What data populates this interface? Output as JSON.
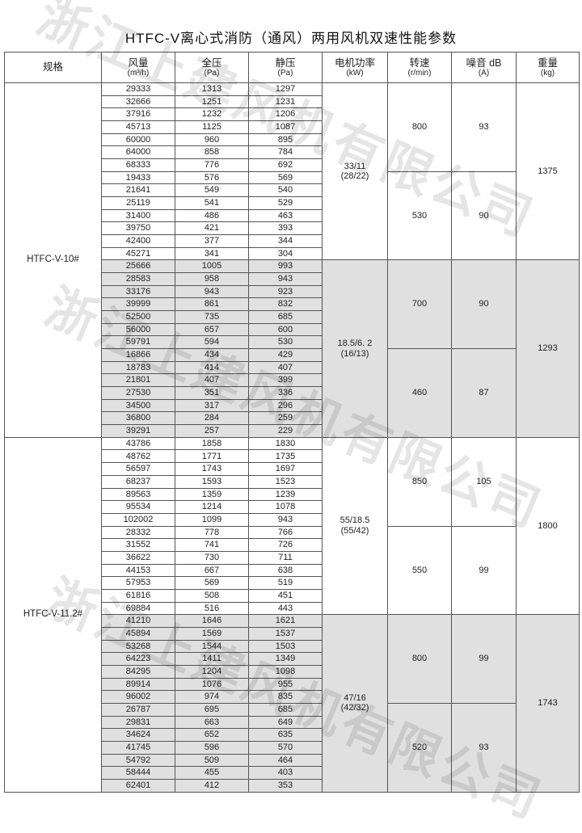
{
  "title": "HTFC-V离心式消防（通风）两用风机双速性能参数",
  "watermark": "浙江上建风机有限公司",
  "colors": {
    "shade": "#e0e0e0",
    "border": "#555555"
  },
  "headers": [
    {
      "label": "规格",
      "unit": ""
    },
    {
      "label": "风量",
      "unit": "(m³/h)"
    },
    {
      "label": "全压",
      "unit": "(Pa)"
    },
    {
      "label": "静压",
      "unit": "(Pa)"
    },
    {
      "label": "电机功率",
      "unit": "(kW)"
    },
    {
      "label": "转速",
      "unit": "(r/min)"
    },
    {
      "label": "噪音 dB",
      "unit": "(A)"
    },
    {
      "label": "重量",
      "unit": "(kg)"
    }
  ],
  "models": [
    {
      "label": "HTFC-V-10#",
      "groups": [
        {
          "motor": "33/11",
          "motor_sub": "(28/22)",
          "weight": "1375",
          "speeds": [
            {
              "rpm": "800",
              "noise": "93",
              "rows": [
                [
                  "29333",
                  "1313",
                  "1297"
                ],
                [
                  "32666",
                  "1251",
                  "1231"
                ],
                [
                  "37916",
                  "1232",
                  "1206"
                ],
                [
                  "45713",
                  "1125",
                  "1087"
                ],
                [
                  "60000",
                  "960",
                  "895"
                ],
                [
                  "64000",
                  "858",
                  "784"
                ],
                [
                  "68333",
                  "776",
                  "692"
                ]
              ]
            },
            {
              "rpm": "530",
              "noise": "90",
              "rows": [
                [
                  "19433",
                  "576",
                  "569"
                ],
                [
                  "21641",
                  "549",
                  "540"
                ],
                [
                  "25119",
                  "541",
                  "529"
                ],
                [
                  "31400",
                  "486",
                  "463"
                ],
                [
                  "39750",
                  "421",
                  "393"
                ],
                [
                  "42400",
                  "377",
                  "344"
                ],
                [
                  "45271",
                  "341",
                  "304"
                ]
              ]
            }
          ]
        },
        {
          "motor": "18.5/6. 2",
          "motor_sub": "(16/13)",
          "weight": "1293",
          "speeds": [
            {
              "rpm": "700",
              "noise": "90",
              "rows": [
                [
                  "25666",
                  "1005",
                  "993"
                ],
                [
                  "28583",
                  "958",
                  "943"
                ],
                [
                  "33176",
                  "943",
                  "923"
                ],
                [
                  "39999",
                  "861",
                  "832"
                ],
                [
                  "52500",
                  "735",
                  "685"
                ],
                [
                  "56000",
                  "657",
                  "600"
                ],
                [
                  "59791",
                  "594",
                  "530"
                ]
              ]
            },
            {
              "rpm": "460",
              "noise": "87",
              "rows": [
                [
                  "16866",
                  "434",
                  "429"
                ],
                [
                  "18783",
                  "414",
                  "407"
                ],
                [
                  "21801",
                  "407",
                  "399"
                ],
                [
                  "27530",
                  "351",
                  "336"
                ],
                [
                  "34500",
                  "317",
                  "296"
                ],
                [
                  "36800",
                  "284",
                  "259"
                ],
                [
                  "39291",
                  "257",
                  "229"
                ]
              ]
            }
          ]
        }
      ]
    },
    {
      "label": "HTFC-V-11.2#",
      "groups": [
        {
          "motor": "55/18.5",
          "motor_sub": "(55/42)",
          "weight": "1800",
          "speeds": [
            {
              "rpm": "850",
              "noise": "105",
              "rows": [
                [
                  "43786",
                  "1858",
                  "1830"
                ],
                [
                  "48762",
                  "1771",
                  "1735"
                ],
                [
                  "56597",
                  "1743",
                  "1697"
                ],
                [
                  "68237",
                  "1593",
                  "1523"
                ],
                [
                  "89563",
                  "1359",
                  "1239"
                ],
                [
                  "95534",
                  "1214",
                  "1078"
                ],
                [
                  "102002",
                  "1099",
                  "943"
                ]
              ]
            },
            {
              "rpm": "550",
              "noise": "99",
              "rows": [
                [
                  "28332",
                  "778",
                  "766"
                ],
                [
                  "31552",
                  "741",
                  "726"
                ],
                [
                  "36622",
                  "730",
                  "711"
                ],
                [
                  "44153",
                  "667",
                  "638"
                ],
                [
                  "57953",
                  "569",
                  "519"
                ],
                [
                  "61816",
                  "508",
                  "451"
                ],
                [
                  "69884",
                  "516",
                  "443"
                ]
              ]
            }
          ]
        },
        {
          "motor": "47/16",
          "motor_sub": "(42/32)",
          "weight": "1743",
          "speeds": [
            {
              "rpm": "800",
              "noise": "99",
              "rows": [
                [
                  "41210",
                  "1646",
                  "1621"
                ],
                [
                  "45894",
                  "1569",
                  "1537"
                ],
                [
                  "53268",
                  "1544",
                  "1503"
                ],
                [
                  "64223",
                  "1411",
                  "1349"
                ],
                [
                  "84295",
                  "1204",
                  "1098"
                ],
                [
                  "89914",
                  "1076",
                  "955"
                ],
                [
                  "96002",
                  "974",
                  "835"
                ]
              ]
            },
            {
              "rpm": "520",
              "noise": "93",
              "rows": [
                [
                  "26787",
                  "695",
                  "685"
                ],
                [
                  "29831",
                  "663",
                  "649"
                ],
                [
                  "34624",
                  "652",
                  "635"
                ],
                [
                  "41745",
                  "596",
                  "570"
                ],
                [
                  "54792",
                  "509",
                  "464"
                ],
                [
                  "58444",
                  "455",
                  "403"
                ],
                [
                  "62401",
                  "412",
                  "353"
                ]
              ]
            }
          ]
        }
      ]
    }
  ]
}
